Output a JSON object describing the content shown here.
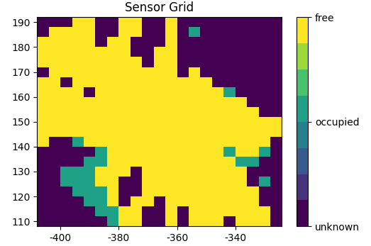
{
  "chart_data": {
    "type": "heatmap",
    "title": "Sensor Grid",
    "x": [
      -408,
      -404,
      -400,
      -396,
      -392,
      -388,
      -384,
      -380,
      -376,
      -372,
      -368,
      -364,
      -360,
      -356,
      -352,
      -348,
      -344,
      -340,
      -336,
      -332,
      -328,
      -324
    ],
    "y": [
      192,
      188,
      184,
      180,
      176,
      172,
      168,
      164,
      160,
      156,
      152,
      148,
      144,
      140,
      136,
      132,
      128,
      124,
      120,
      116,
      112,
      108
    ],
    "xlim": [
      -408,
      -324
    ],
    "ylim": [
      108,
      192
    ],
    "xticks": [
      -400,
      -380,
      -360,
      -340
    ],
    "yticks": [
      110,
      120,
      130,
      140,
      150,
      160,
      170,
      180,
      190
    ],
    "colorbar_range": [
      0,
      1
    ],
    "colorbar_ticks": [
      {
        "value": 0,
        "label": "unknown"
      },
      {
        "value": 0.5,
        "label": "occupied"
      },
      {
        "value": 1,
        "label": "free"
      }
    ],
    "cells": [
      [
        0,
        0,
        0,
        1,
        1,
        0,
        0,
        1,
        1,
        0,
        0,
        1,
        0,
        0,
        0,
        0,
        0,
        0,
        0,
        0,
        0
      ],
      [
        0,
        1,
        1,
        1,
        1,
        0,
        0,
        1,
        1,
        0,
        0,
        1,
        0,
        0.5,
        0,
        0,
        0,
        0,
        0,
        0,
        0
      ],
      [
        1,
        1,
        1,
        1,
        1,
        0,
        1,
        1,
        0,
        0,
        0,
        1,
        0,
        0,
        0,
        0,
        0,
        0,
        0,
        0,
        0
      ],
      [
        1,
        1,
        1,
        1,
        1,
        1,
        1,
        1,
        0,
        0,
        1,
        1,
        0,
        0,
        0,
        0,
        0,
        0,
        0,
        0,
        0
      ],
      [
        1,
        1,
        1,
        1,
        1,
        1,
        1,
        1,
        1,
        0,
        1,
        1,
        0,
        0,
        0,
        0,
        0,
        0,
        0,
        0,
        0
      ],
      [
        0,
        1,
        1,
        1,
        1,
        1,
        1,
        1,
        1,
        1,
        1,
        1,
        0,
        1,
        0,
        0,
        0,
        0,
        0,
        0,
        0
      ],
      [
        1,
        1,
        0,
        1,
        1,
        1,
        1,
        1,
        1,
        1,
        1,
        1,
        1,
        1,
        1,
        0,
        0,
        0,
        0,
        0,
        0
      ],
      [
        1,
        1,
        1,
        1,
        0,
        1,
        1,
        1,
        1,
        1,
        1,
        1,
        1,
        1,
        1,
        1,
        0.5,
        0,
        0,
        0,
        0
      ],
      [
        1,
        1,
        1,
        1,
        1,
        1,
        1,
        1,
        1,
        1,
        1,
        1,
        1,
        1,
        1,
        1,
        1,
        1,
        0,
        0,
        0
      ],
      [
        1,
        1,
        1,
        1,
        1,
        1,
        1,
        1,
        1,
        1,
        1,
        1,
        1,
        1,
        1,
        1,
        1,
        1,
        1,
        0,
        0
      ],
      [
        1,
        1,
        1,
        1,
        1,
        1,
        1,
        1,
        1,
        1,
        1,
        1,
        1,
        1,
        1,
        1,
        1,
        1,
        1,
        1,
        1
      ],
      [
        1,
        1,
        1,
        1,
        1,
        1,
        1,
        1,
        1,
        1,
        1,
        1,
        1,
        1,
        1,
        1,
        1,
        1,
        1,
        1,
        1
      ],
      [
        1,
        0,
        0,
        0.5,
        1,
        1,
        1,
        1,
        1,
        1,
        1,
        1,
        1,
        1,
        1,
        1,
        1,
        1,
        1,
        1,
        0
      ],
      [
        0,
        0,
        0,
        0,
        0,
        0.5,
        1,
        1,
        1,
        1,
        1,
        1,
        1,
        1,
        1,
        1,
        0.5,
        1,
        1,
        0.5,
        0
      ],
      [
        0,
        0,
        0,
        0,
        0.5,
        0.5,
        1,
        1,
        1,
        1,
        1,
        1,
        1,
        1,
        1,
        1,
        1,
        0.5,
        0.5,
        0,
        0
      ],
      [
        0,
        0,
        0.5,
        0.5,
        0.5,
        1,
        1,
        1,
        0,
        1,
        1,
        1,
        1,
        1,
        1,
        1,
        1,
        1,
        0,
        0,
        0
      ],
      [
        0,
        0,
        0.5,
        0.5,
        0.5,
        1,
        1,
        0,
        0,
        1,
        1,
        1,
        1,
        1,
        1,
        1,
        1,
        1,
        0,
        0.5,
        0
      ],
      [
        0,
        0,
        0,
        0.5,
        0.5,
        0.5,
        1,
        0,
        0,
        1,
        1,
        1,
        1,
        1,
        1,
        1,
        1,
        1,
        1,
        0,
        0
      ],
      [
        0,
        0,
        0,
        0,
        0.5,
        0.5,
        1,
        0,
        1,
        1,
        0,
        1,
        1,
        1,
        1,
        1,
        1,
        1,
        1,
        0,
        0
      ],
      [
        0,
        0,
        0,
        0,
        0,
        0.5,
        0.5,
        1,
        1,
        0,
        0,
        1,
        0,
        1,
        1,
        1,
        1,
        1,
        1,
        1,
        0
      ],
      [
        0,
        0,
        0,
        0,
        0,
        0,
        0.5,
        1,
        1,
        0,
        0,
        1,
        0,
        1,
        1,
        1,
        0,
        1,
        1,
        1,
        0
      ]
    ]
  }
}
